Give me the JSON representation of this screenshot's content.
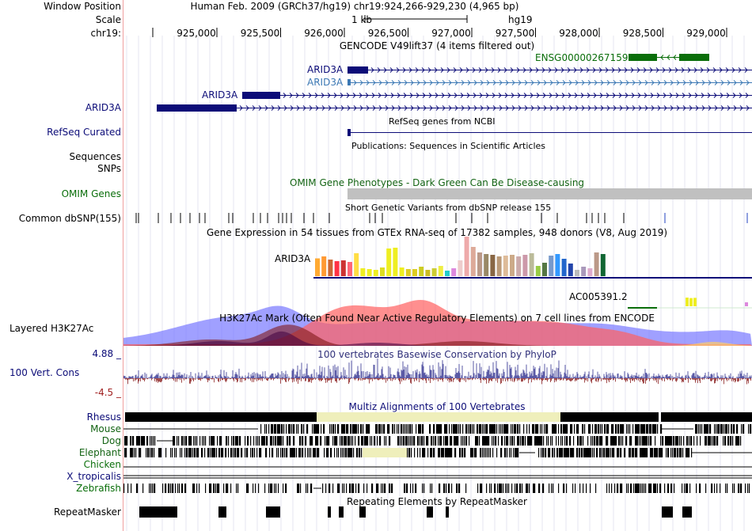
{
  "header": {
    "window_position_label": "Window Position",
    "scale_label": "Scale",
    "chrom_label": "chr19:",
    "title": "Human Feb. 2009 (GRCh37/hg19)   chr19:924,266-929,230 (4,965 bp)",
    "scale_value": "1 kb",
    "assembly": "hg19",
    "ticks": [
      "925,000",
      "925,500",
      "926,000",
      "926,500",
      "927,000",
      "927,500",
      "928,000",
      "928,500",
      "929,000"
    ]
  },
  "gencode": {
    "title": "GENCODE V49lift37 (4 items filtered out)",
    "genes": [
      "ENSG00000267159",
      "ARID3A",
      "ARID3A",
      "ARID3A",
      "ARID3A"
    ]
  },
  "refseq": {
    "label": "RefSeq Curated",
    "title": "RefSeq genes from NCBI"
  },
  "publications": {
    "title": "Publications: Sequences in Scientific Articles",
    "label": "Sequences"
  },
  "snps": {
    "label": "SNPs"
  },
  "omim": {
    "label": "OMIM Genes",
    "title": "OMIM Gene Phenotypes - Dark Green Can Be Disease-causing"
  },
  "dbsnp": {
    "label": "Common dbSNP(155)",
    "title": "Short Genetic Variants from dbSNP release 155"
  },
  "gtex": {
    "title": "Gene Expression in 54 tissues from GTEx RNA-seq of 17382 samples, 948 donors (V8, Aug 2019)",
    "gene1": "ARID3A",
    "gene2": "AC005391.2",
    "bar_values": [
      0.45,
      0.5,
      0.42,
      0.38,
      0.4,
      0.36,
      0.58,
      0.2,
      0.18,
      0.16,
      0.22,
      0.7,
      0.72,
      0.22,
      0.18,
      0.18,
      0.24,
      0.16,
      0.2,
      0.26,
      0.14,
      0.2,
      0.4,
      1.0,
      0.74,
      0.6,
      0.56,
      0.54,
      0.5,
      0.52,
      0.54,
      0.5,
      0.54,
      0.58,
      0.26,
      0.34,
      0.52,
      0.56,
      0.44,
      0.32,
      0.16,
      0.24,
      0.2,
      0.6,
      0.56,
      0.2,
      0.3,
      0.42,
      0.46,
      0.6,
      0.46,
      0.38,
      0.78,
      0.74,
      0.76
    ],
    "bar_colors": [
      "#ffaa33",
      "#ff9933",
      "#cc6633",
      "#ff3344",
      "#cc3333",
      "#ff6677",
      "#ffdd44",
      "#eeee22",
      "#eeee22",
      "#eeee22",
      "#dddd22",
      "#eeee22",
      "#eeee22",
      "#eeee22",
      "#ddcc22",
      "#ddcc22",
      "#cccc22",
      "#ccbb22",
      "#cccc33",
      "#eeee44",
      "#22cccc",
      "#dd88dd",
      "#eecccc",
      "#eeaaaa",
      "#ddaa99",
      "#bb9988",
      "#998866",
      "#886644",
      "#bb9977",
      "#ddbb99",
      "#ccaa88",
      "#ccaaaa",
      "#cc99aa",
      "#bbbb99",
      "#99cc44",
      "#557744",
      "#7799cc",
      "#3399ff",
      "#2266cc",
      "#2244aa",
      "#bbbbbb",
      "#aa99bb",
      "#ddaacc",
      "#bb9988",
      "#116633",
      "#ddbbaa",
      "#aaaaaa",
      "#ee44ee",
      "#ff00ff",
      "#ffaa33",
      "#ff9933",
      "#dd88dd",
      "#eeee22",
      "#eeee22",
      "#eeee22"
    ]
  },
  "h3k27ac": {
    "label": "Layered H3K27Ac",
    "title": "H3K27Ac Mark (Often Found Near Active Regulatory Elements) on 7 cell lines from ENCODE"
  },
  "cons": {
    "max": "4.88 _",
    "label": "100 Vert. Cons",
    "min": "-4.5 _",
    "title": "100 vertebrates Basewise Conservation by PhyloP"
  },
  "multiz": {
    "title": "Multiz Alignments of 100 Vertebrates",
    "species": [
      "Rhesus",
      "Mouse",
      "Dog",
      "Elephant",
      "Chicken",
      "X_tropicalis",
      "Zebrafish"
    ]
  },
  "repeatmasker": {
    "label": "RepeatMasker",
    "title": "Repeating Elements by RepeatMasker"
  },
  "colors": {
    "navy": "#0c0c78",
    "green": "#0a6e0a",
    "omim_gray": "#c0c0c0",
    "divider": "#f0a0a0"
  }
}
